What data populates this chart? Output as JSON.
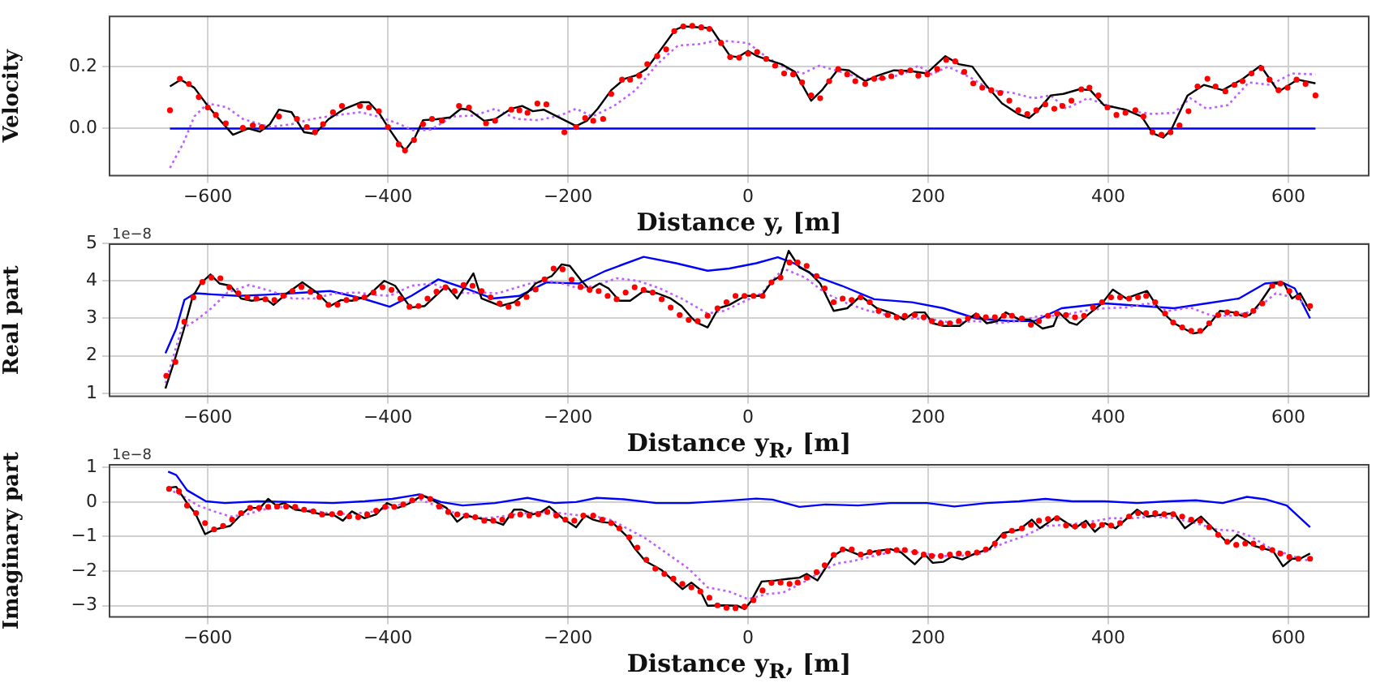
{
  "chart_data": [
    {
      "type": "line",
      "ylabel": "Velocity",
      "xlabel": "Distance y, [m]",
      "grid": true,
      "xlim": [
        -710,
        690
      ],
      "xticks": [
        {
          "value": -600,
          "label": "−600"
        },
        {
          "value": -400,
          "label": "−400"
        },
        {
          "value": -200,
          "label": "−200"
        },
        {
          "value": 0,
          "label": "0"
        },
        {
          "value": 200,
          "label": "200"
        },
        {
          "value": 400,
          "label": "400"
        },
        {
          "value": 600,
          "label": "600"
        }
      ],
      "ylim": [
        -0.155,
        0.365
      ],
      "yticks": [
        {
          "value": 0,
          "label": "0.0"
        },
        {
          "value": 0.2,
          "label": "0.2"
        }
      ],
      "series": [
        {
          "type": "scatter",
          "marker": "circle",
          "color": "#ff0000",
          "x": [
            -642,
            -631,
            -621,
            -610,
            -600,
            -591,
            -580,
            -561,
            -550,
            -540,
            -521,
            -501,
            -490,
            -481,
            -472,
            -461,
            -451,
            -431,
            -421,
            -410,
            -400,
            -388,
            -381,
            -371,
            -361,
            -351,
            -340,
            -321,
            -310,
            -291,
            -281,
            -263,
            -254,
            -245,
            -234,
            -224,
            -204,
            -191,
            -181,
            -172,
            -161,
            -152,
            -140,
            -131,
            -121,
            -112,
            -101,
            -91,
            -82,
            -72,
            -62,
            -52,
            -43,
            -30,
            -20,
            -10,
            0,
            10,
            20,
            30,
            40,
            50,
            60,
            70,
            80,
            90,
            100,
            110,
            119,
            130,
            140,
            149,
            159,
            170,
            180,
            189,
            199,
            210,
            220,
            230,
            240,
            250,
            260,
            270,
            280,
            290,
            300,
            310,
            320,
            330,
            340,
            349,
            359,
            370,
            379,
            389,
            399,
            409,
            419,
            430,
            439,
            449,
            459,
            469,
            479,
            489,
            499,
            510,
            519,
            530,
            540,
            549,
            559,
            570,
            579,
            589,
            599,
            609,
            619,
            630
          ],
          "values": [
            0.059,
            0.161,
            0.144,
            0.102,
            0.068,
            0.044,
            0.017,
            0.002,
            0.01,
            0.005,
            0.039,
            0.031,
            0.005,
            -0.012,
            0.014,
            0.053,
            0.073,
            0.073,
            0.068,
            0.056,
            0.005,
            -0.051,
            -0.071,
            -0.037,
            0.014,
            0.031,
            0.025,
            0.073,
            0.068,
            0.017,
            0.025,
            0.061,
            0.059,
            0.051,
            0.081,
            0.078,
            -0.012,
            0.005,
            0.034,
            0.025,
            0.031,
            0.112,
            0.158,
            0.158,
            0.171,
            0.208,
            0.234,
            0.256,
            0.315,
            0.33,
            0.332,
            0.327,
            0.322,
            0.276,
            0.231,
            0.229,
            0.242,
            0.247,
            0.225,
            0.203,
            0.178,
            0.175,
            0.149,
            0.107,
            0.098,
            0.153,
            0.192,
            0.175,
            0.153,
            0.144,
            0.161,
            0.163,
            0.169,
            0.183,
            0.188,
            0.171,
            0.175,
            0.192,
            0.222,
            0.217,
            0.183,
            0.146,
            0.132,
            0.124,
            0.115,
            0.09,
            0.059,
            0.047,
            0.059,
            0.078,
            0.064,
            0.073,
            0.09,
            0.127,
            0.132,
            0.107,
            0.068,
            0.044,
            0.051,
            0.059,
            0.039,
            -0.012,
            -0.02,
            -0.012,
            0.01,
            0.056,
            0.136,
            0.161,
            0.136,
            0.12,
            0.141,
            0.153,
            0.178,
            0.195,
            0.158,
            0.124,
            0.132,
            0.158,
            0.144,
            0.107
          ]
        },
        {
          "color": "#000000",
          "x": [
            -642,
            -630,
            -615,
            -600,
            -585,
            -572,
            -555,
            -542,
            -531,
            -521,
            -507,
            -493,
            -481,
            -466,
            -448,
            -430,
            -421,
            -409,
            -400,
            -388,
            -381,
            -370,
            -361,
            -346,
            -331,
            -319,
            -310,
            -293,
            -281,
            -263,
            -251,
            -239,
            -227,
            -212,
            -191,
            -179,
            -167,
            -152,
            -137,
            -125,
            -113,
            -96,
            -81,
            -72,
            -54,
            -41,
            -32,
            -20,
            -11,
            0,
            10,
            22,
            37,
            52,
            70,
            82,
            100,
            112,
            130,
            144,
            162,
            180,
            198,
            219,
            234,
            249,
            264,
            282,
            300,
            312,
            321,
            336,
            350,
            368,
            380,
            395,
            419,
            437,
            449,
            461,
            470,
            488,
            506,
            527,
            548,
            569,
            589,
            610,
            630
          ],
          "values": [
            0.136,
            0.158,
            0.132,
            0.073,
            0.022,
            -0.02,
            0,
            -0.01,
            0.014,
            0.061,
            0.053,
            -0.012,
            -0.017,
            0.03,
            0.064,
            0.085,
            0.085,
            0.047,
            0.005,
            -0.046,
            -0.071,
            -0.029,
            0.027,
            0.03,
            0.036,
            0.064,
            0.061,
            0.025,
            0.03,
            0.064,
            0.073,
            0.056,
            0.061,
            0.039,
            0.008,
            0.025,
            0.064,
            0.124,
            0.161,
            0.171,
            0.192,
            0.259,
            0.319,
            0.33,
            0.327,
            0.324,
            0.285,
            0.234,
            0.231,
            0.251,
            0.234,
            0.222,
            0.208,
            0.183,
            0.09,
            0.124,
            0.192,
            0.188,
            0.153,
            0.171,
            0.188,
            0.186,
            0.178,
            0.234,
            0.208,
            0.2,
            0.141,
            0.081,
            0.047,
            0.034,
            0.056,
            0.107,
            0.112,
            0.127,
            0.124,
            0.076,
            0.061,
            0.039,
            -0.015,
            -0.029,
            -0.003,
            0.107,
            0.141,
            0.124,
            0.158,
            0.203,
            0.119,
            0.158,
            0.146
          ]
        },
        {
          "line_style": "dotted",
          "color": "#bf5fff",
          "x": [
            -642,
            -627,
            -615,
            -600,
            -579,
            -561,
            -531,
            -507,
            -484,
            -460,
            -430,
            -412,
            -391,
            -370,
            -352,
            -328,
            -304,
            -281,
            -257,
            -233,
            -209,
            -191,
            -173,
            -149,
            -125,
            -101,
            -78,
            -53,
            -35,
            -17,
            0,
            19,
            43,
            61,
            79,
            103,
            127,
            151,
            174,
            189,
            204,
            222,
            246,
            270,
            294,
            317,
            336,
            353,
            377,
            401,
            425,
            449,
            473,
            491,
            509,
            533,
            556,
            580,
            604,
            630
          ],
          "values": [
            -0.127,
            -0.046,
            0.039,
            0.081,
            0.069,
            0.031,
            0.005,
            0.014,
            0.031,
            0.042,
            0.053,
            0.039,
            0.019,
            -0.008,
            -0.003,
            0.039,
            0.042,
            0.064,
            0.031,
            0.027,
            0.042,
            0.064,
            0.039,
            0.073,
            0.124,
            0.208,
            0.268,
            0.273,
            0.285,
            0.281,
            0.276,
            0.234,
            0.192,
            0.178,
            0.203,
            0.183,
            0.161,
            0.161,
            0.178,
            0.203,
            0.175,
            0.2,
            0.166,
            0.124,
            0.115,
            0.098,
            0.107,
            0.064,
            0.098,
            0.073,
            0.056,
            0.047,
            0.051,
            0.098,
            0.064,
            0.076,
            0.149,
            0.141,
            0.178,
            0.175
          ]
        },
        {
          "color": "#0000ff",
          "x": [
            -642,
            630
          ],
          "values": [
            0,
            0
          ]
        }
      ]
    },
    {
      "type": "line",
      "ylabel": "Real part",
      "xlabel": "Distance y$_{R}$, [m]",
      "grid": true,
      "annotations": [
        "1e−8"
      ],
      "xlim": [
        -710,
        690
      ],
      "xticks": [
        {
          "value": -600,
          "label": "−600"
        },
        {
          "value": -400,
          "label": "−400"
        },
        {
          "value": -200,
          "label": "−200"
        },
        {
          "value": 0,
          "label": "0"
        },
        {
          "value": 200,
          "label": "200"
        },
        {
          "value": 400,
          "label": "400"
        },
        {
          "value": 600,
          "label": "600"
        }
      ],
      "ylim": [
        0.9,
        5.0
      ],
      "yticks": [
        1,
        2,
        3,
        4,
        5
      ],
      "series": [
        {
          "type": "scatter",
          "marker": "circle",
          "color": "#ff0000",
          "x": [
            -646,
            -636,
            -626,
            -616,
            -606,
            -596,
            -586,
            -576,
            -566,
            -556,
            -546,
            -536,
            -526,
            -516,
            -506,
            -496,
            -486,
            -476,
            -466,
            -456,
            -446,
            -436,
            -426,
            -416,
            -406,
            -396,
            -386,
            -376,
            -366,
            -356,
            -346,
            -336,
            -326,
            -316,
            -306,
            -296,
            -286,
            -276,
            -266,
            -256,
            -246,
            -236,
            -226,
            -216,
            -206,
            -196,
            -186,
            -176,
            -166,
            -156,
            -146,
            -136,
            -126,
            -116,
            -106,
            -96,
            -86,
            -76,
            -66,
            -56,
            -45,
            -34,
            -24,
            -14,
            -4,
            6,
            16,
            26,
            36,
            46,
            55,
            65,
            76,
            85,
            95,
            105,
            115,
            125,
            135,
            145,
            155,
            165,
            174,
            185,
            195,
            204,
            214,
            224,
            234,
            244,
            254,
            264,
            274,
            284,
            293,
            304,
            314,
            323,
            333,
            343,
            353,
            363,
            373,
            383,
            393,
            403,
            413,
            423,
            433,
            442,
            452,
            463,
            472,
            482,
            492,
            502,
            512,
            522,
            532,
            542,
            552,
            561,
            571,
            582,
            591,
            601,
            611,
            624
          ],
          "values": [
            1.47,
            1.84,
            2.91,
            3.56,
            3.97,
            4.09,
            4.07,
            3.83,
            3.67,
            3.56,
            3.53,
            3.51,
            3.49,
            3.6,
            3.73,
            3.84,
            3.71,
            3.57,
            3.36,
            3.37,
            3.49,
            3.53,
            3.56,
            3.69,
            3.83,
            3.76,
            3.53,
            3.31,
            3.33,
            3.53,
            3.71,
            3.83,
            3.73,
            3.89,
            3.87,
            3.73,
            3.56,
            3.4,
            3.31,
            3.4,
            3.57,
            3.77,
            4.04,
            4.33,
            4.31,
            4.03,
            3.84,
            3.76,
            3.73,
            3.6,
            3.51,
            3.69,
            3.83,
            3.76,
            3.69,
            3.51,
            3.29,
            3.09,
            2.96,
            2.93,
            3.07,
            3.27,
            3.43,
            3.6,
            3.6,
            3.6,
            3.6,
            3.96,
            4.09,
            4.49,
            4.49,
            4.4,
            4.13,
            3.8,
            3.43,
            3.53,
            3.49,
            3.56,
            3.43,
            3.2,
            3.09,
            3.03,
            3.07,
            3.09,
            3.03,
            2.93,
            2.87,
            2.87,
            2.93,
            3.0,
            3.07,
            3.03,
            3.03,
            3.07,
            3.07,
            3.0,
            2.83,
            2.93,
            3.07,
            3.13,
            3.09,
            3.03,
            3.07,
            3.29,
            3.43,
            3.56,
            3.56,
            3.53,
            3.56,
            3.6,
            3.43,
            3.13,
            2.89,
            2.76,
            2.67,
            2.67,
            2.87,
            3.09,
            3.16,
            3.13,
            3.09,
            3.2,
            3.4,
            3.87,
            3.93,
            3.73,
            3.56,
            3.33
          ]
        },
        {
          "color": "#000000",
          "x": [
            -647,
            -637,
            -627,
            -617,
            -608,
            -597,
            -587,
            -575,
            -563,
            -551,
            -536,
            -527,
            -512,
            -495,
            -479,
            -464,
            -452,
            -440,
            -422,
            -404,
            -392,
            -375,
            -359,
            -347,
            -335,
            -323,
            -305,
            -296,
            -275,
            -260,
            -245,
            -236,
            -218,
            -207,
            -198,
            -185,
            -176,
            -165,
            -155,
            -143,
            -131,
            -116,
            -101,
            -86,
            -74,
            -62,
            -57,
            -45,
            -33,
            -21,
            -3,
            15,
            27,
            36,
            45,
            57,
            68,
            80,
            95,
            110,
            125,
            143,
            161,
            173,
            185,
            196,
            205,
            217,
            235,
            253,
            265,
            277,
            286,
            301,
            313,
            327,
            339,
            345,
            357,
            365,
            378,
            393,
            405,
            420,
            432,
            443,
            455,
            473,
            494,
            503,
            515,
            524,
            539,
            548,
            557,
            568,
            583,
            595,
            604,
            613,
            624
          ],
          "values": [
            1.13,
            1.87,
            2.67,
            3.56,
            3.93,
            4.17,
            3.93,
            3.87,
            3.53,
            3.47,
            3.53,
            3.36,
            3.67,
            3.96,
            3.69,
            3.33,
            3.49,
            3.47,
            3.6,
            4.0,
            3.87,
            3.29,
            3.33,
            3.6,
            3.87,
            3.53,
            4.2,
            3.53,
            3.33,
            3.43,
            3.69,
            3.93,
            4.13,
            4.44,
            4.4,
            4.0,
            3.77,
            3.93,
            3.8,
            3.47,
            3.47,
            3.73,
            3.67,
            3.53,
            3.33,
            3.0,
            2.89,
            2.76,
            3.27,
            3.36,
            3.6,
            3.6,
            4.0,
            4.13,
            4.8,
            4.36,
            4.23,
            3.93,
            3.2,
            3.27,
            3.6,
            3.27,
            3.13,
            2.97,
            3.16,
            3.16,
            2.87,
            2.8,
            2.8,
            3.13,
            2.87,
            2.93,
            3.16,
            2.97,
            2.97,
            2.73,
            2.8,
            3.16,
            2.89,
            2.83,
            3.11,
            3.4,
            3.77,
            3.53,
            3.64,
            3.73,
            3.29,
            2.87,
            2.6,
            2.63,
            2.93,
            3.2,
            3.16,
            3.07,
            3.09,
            3.4,
            3.93,
            3.93,
            3.53,
            3.67,
            3.2
          ]
        },
        {
          "line_style": "dotted",
          "color": "#bf5fff",
          "x": [
            -647,
            -629,
            -614,
            -596,
            -578,
            -554,
            -530,
            -506,
            -482,
            -458,
            -434,
            -416,
            -398,
            -374,
            -350,
            -332,
            -314,
            -296,
            -278,
            -260,
            -242,
            -224,
            -206,
            -188,
            -170,
            -146,
            -122,
            -98,
            -74,
            -45,
            -27,
            -9,
            15,
            39,
            63,
            86,
            110,
            134,
            158,
            182,
            205,
            229,
            253,
            277,
            301,
            324,
            348,
            372,
            396,
            420,
            443,
            467,
            491,
            515,
            539,
            562,
            586,
            610,
            624
          ],
          "values": [
            1.27,
            2.73,
            2.93,
            3.27,
            3.69,
            3.89,
            3.73,
            3.53,
            3.53,
            3.67,
            3.69,
            3.63,
            3.6,
            3.87,
            3.93,
            3.73,
            3.67,
            3.69,
            3.67,
            3.8,
            3.93,
            4.0,
            3.93,
            3.8,
            3.87,
            4.07,
            4.0,
            3.8,
            3.53,
            3.13,
            3.2,
            3.4,
            3.67,
            4.33,
            4.09,
            3.67,
            3.4,
            3.2,
            3.07,
            3.0,
            2.97,
            2.87,
            2.93,
            2.87,
            2.93,
            3.07,
            3.07,
            3.2,
            3.27,
            3.29,
            3.4,
            3.2,
            3.29,
            3.07,
            3.07,
            3.2,
            3.67,
            3.53,
            3.27
          ]
        },
        {
          "color": "#0000ff",
          "x": [
            -647,
            -635,
            -626,
            -614,
            -596,
            -566,
            -536,
            -506,
            -464,
            -428,
            -398,
            -374,
            -344,
            -314,
            -284,
            -254,
            -224,
            -188,
            -158,
            -116,
            -80,
            -45,
            -21,
            9,
            33,
            51,
            74,
            104,
            140,
            182,
            217,
            253,
            289,
            318,
            348,
            396,
            438,
            473,
            509,
            545,
            574,
            592,
            607,
            624
          ],
          "values": [
            2.07,
            2.73,
            3.49,
            3.67,
            3.64,
            3.6,
            3.63,
            3.67,
            3.73,
            3.53,
            3.31,
            3.6,
            4.04,
            3.8,
            3.53,
            3.6,
            3.96,
            3.93,
            4.27,
            4.64,
            4.47,
            4.27,
            4.33,
            4.47,
            4.63,
            4.47,
            4.13,
            3.87,
            3.51,
            3.43,
            3.27,
            3.0,
            2.93,
            2.93,
            3.27,
            3.4,
            3.33,
            3.27,
            3.4,
            3.53,
            3.93,
            3.97,
            3.8,
            3.0
          ]
        }
      ]
    },
    {
      "type": "line",
      "ylabel": "Imaginary part",
      "xlabel": "Distance y$_{R}$, [m]",
      "grid": true,
      "annotations": [
        "1e−8"
      ],
      "xlim": [
        -710,
        690
      ],
      "xticks": [
        {
          "value": -600,
          "label": "−600"
        },
        {
          "value": -400,
          "label": "−400"
        },
        {
          "value": -200,
          "label": "−200"
        },
        {
          "value": 0,
          "label": "0"
        },
        {
          "value": 200,
          "label": "200"
        },
        {
          "value": 400,
          "label": "400"
        },
        {
          "value": 600,
          "label": "600"
        }
      ],
      "ylim": [
        -3.35,
        1.1
      ],
      "yticks": [
        {
          "value": -3,
          "label": "−3"
        },
        {
          "value": -2,
          "label": "−2"
        },
        {
          "value": -1,
          "label": "−1"
        },
        0,
        1
      ],
      "series": [
        {
          "type": "scatter",
          "marker": "circle",
          "color": "#ff0000",
          "x": [
            -643,
            -632,
            -623,
            -613,
            -603,
            -593,
            -583,
            -573,
            -563,
            -553,
            -543,
            -533,
            -523,
            -513,
            -503,
            -493,
            -483,
            -473,
            -462,
            -453,
            -443,
            -433,
            -423,
            -413,
            -403,
            -393,
            -383,
            -373,
            -363,
            -353,
            -343,
            -333,
            -323,
            -313,
            -303,
            -293,
            -283,
            -273,
            -263,
            -253,
            -243,
            -233,
            -223,
            -213,
            -203,
            -193,
            -183,
            -172,
            -162,
            -152,
            -143,
            -132,
            -123,
            -113,
            -103,
            -93,
            -83,
            -73,
            -63,
            -53,
            -43,
            -34,
            -24,
            -14,
            -4,
            6,
            16,
            26,
            36,
            46,
            55,
            65,
            76,
            85,
            95,
            105,
            115,
            125,
            135,
            145,
            155,
            165,
            174,
            185,
            195,
            204,
            214,
            224,
            234,
            244,
            254,
            264,
            274,
            284,
            293,
            304,
            314,
            323,
            333,
            343,
            353,
            363,
            373,
            383,
            393,
            403,
            413,
            423,
            433,
            442,
            452,
            462,
            472,
            482,
            492,
            502,
            512,
            522,
            532,
            542,
            552,
            561,
            571,
            582,
            591,
            601,
            611,
            624
          ],
          "values": [
            0.38,
            0.31,
            -0.1,
            -0.32,
            -0.61,
            -0.79,
            -0.69,
            -0.51,
            -0.32,
            -0.17,
            -0.17,
            -0.14,
            -0.13,
            -0.13,
            -0.14,
            -0.22,
            -0.27,
            -0.36,
            -0.35,
            -0.32,
            -0.42,
            -0.44,
            -0.36,
            -0.25,
            -0.14,
            -0.14,
            -0.07,
            0.05,
            0.16,
            0.09,
            -0.13,
            -0.29,
            -0.36,
            -0.39,
            -0.44,
            -0.54,
            -0.54,
            -0.51,
            -0.39,
            -0.36,
            -0.39,
            -0.35,
            -0.29,
            -0.39,
            -0.51,
            -0.54,
            -0.39,
            -0.39,
            -0.51,
            -0.61,
            -0.76,
            -1.02,
            -1.32,
            -1.67,
            -1.93,
            -2.08,
            -2.22,
            -2.37,
            -2.47,
            -2.59,
            -2.77,
            -2.99,
            -3.06,
            -3.07,
            -3.03,
            -2.84,
            -2.56,
            -2.34,
            -2.33,
            -2.37,
            -2.33,
            -2.19,
            -2.03,
            -1.83,
            -1.53,
            -1.37,
            -1.37,
            -1.52,
            -1.45,
            -1.46,
            -1.42,
            -1.39,
            -1.39,
            -1.45,
            -1.52,
            -1.56,
            -1.56,
            -1.52,
            -1.49,
            -1.49,
            -1.46,
            -1.37,
            -1.2,
            -0.98,
            -0.83,
            -0.76,
            -0.66,
            -0.54,
            -0.49,
            -0.47,
            -0.68,
            -0.71,
            -0.68,
            -0.68,
            -0.66,
            -0.68,
            -0.61,
            -0.42,
            -0.32,
            -0.32,
            -0.32,
            -0.35,
            -0.35,
            -0.42,
            -0.51,
            -0.54,
            -0.73,
            -0.95,
            -1.15,
            -1.24,
            -1.2,
            -1.2,
            -1.32,
            -1.39,
            -1.49,
            -1.59,
            -1.64,
            -1.64
          ]
        },
        {
          "color": "#000000",
          "x": [
            -644,
            -635,
            -623,
            -614,
            -603,
            -593,
            -575,
            -564,
            -554,
            -542,
            -533,
            -524,
            -515,
            -503,
            -488,
            -473,
            -461,
            -450,
            -440,
            -426,
            -413,
            -401,
            -389,
            -377,
            -362,
            -350,
            -335,
            -323,
            -314,
            -299,
            -284,
            -272,
            -260,
            -251,
            -239,
            -230,
            -221,
            -206,
            -191,
            -181,
            -172,
            -162,
            -150,
            -135,
            -126,
            -114,
            -96,
            -73,
            -63,
            -54,
            -45,
            -27,
            -12,
            -4,
            3,
            15,
            30,
            45,
            57,
            65,
            77,
            95,
            107,
            125,
            140,
            158,
            170,
            185,
            196,
            205,
            217,
            226,
            238,
            253,
            268,
            283,
            301,
            315,
            324,
            343,
            363,
            375,
            385,
            396,
            408,
            432,
            443,
            473,
            485,
            503,
            533,
            543,
            562,
            583,
            594,
            604,
            613,
            624
          ],
          "values": [
            0.41,
            0.44,
            -0.03,
            -0.32,
            -0.93,
            -0.8,
            -0.69,
            -0.39,
            -0.17,
            -0.17,
            0.09,
            -0.1,
            -0.03,
            -0.22,
            -0.27,
            -0.36,
            -0.36,
            -0.54,
            -0.27,
            -0.47,
            -0.36,
            -0.03,
            -0.17,
            -0.05,
            0.19,
            0.05,
            -0.17,
            -0.57,
            -0.39,
            -0.47,
            -0.54,
            -0.66,
            -0.22,
            -0.22,
            -0.36,
            -0.29,
            -0.13,
            -0.47,
            -0.73,
            -0.39,
            -0.51,
            -0.58,
            -0.61,
            -0.98,
            -1.34,
            -1.71,
            -1.97,
            -2.52,
            -2.33,
            -2.52,
            -3.0,
            -2.99,
            -3.0,
            -3.1,
            -2.88,
            -2.3,
            -2.27,
            -2.22,
            -2.19,
            -2.08,
            -2.27,
            -1.55,
            -1.36,
            -1.55,
            -1.43,
            -1.36,
            -1.46,
            -1.8,
            -1.51,
            -1.76,
            -1.73,
            -1.58,
            -1.66,
            -1.48,
            -1.36,
            -0.9,
            -0.8,
            -0.51,
            -0.76,
            -0.42,
            -0.76,
            -0.54,
            -0.86,
            -0.61,
            -0.76,
            -0.22,
            -0.42,
            -0.32,
            -0.76,
            -0.42,
            -1.2,
            -0.95,
            -1.27,
            -1.42,
            -1.86,
            -1.64,
            -1.64,
            -1.49
          ]
        },
        {
          "line_style": "dotted",
          "color": "#bf5fff",
          "x": [
            -644,
            -629,
            -611,
            -593,
            -575,
            -557,
            -539,
            -515,
            -491,
            -467,
            -443,
            -419,
            -401,
            -383,
            -365,
            -347,
            -329,
            -311,
            -293,
            -275,
            -257,
            -233,
            -209,
            -186,
            -168,
            -150,
            -132,
            -114,
            -90,
            -66,
            -45,
            -21,
            0,
            21,
            39,
            63,
            80,
            98,
            116,
            140,
            164,
            187,
            211,
            235,
            259,
            283,
            307,
            330,
            354,
            378,
            402,
            426,
            449,
            473,
            497,
            521,
            539,
            557,
            580,
            604,
            624
          ],
          "values": [
            0.38,
            0.19,
            -0.1,
            -0.27,
            -0.42,
            -0.36,
            -0.22,
            -0.14,
            -0.22,
            -0.32,
            -0.35,
            -0.29,
            -0.17,
            -0.05,
            0.08,
            -0.1,
            -0.29,
            -0.39,
            -0.47,
            -0.42,
            -0.35,
            -0.29,
            -0.32,
            -0.39,
            -0.42,
            -0.54,
            -0.8,
            -1.05,
            -1.49,
            -1.93,
            -2.47,
            -2.59,
            -2.81,
            -2.66,
            -2.62,
            -2.3,
            -2.03,
            -1.78,
            -1.71,
            -1.56,
            -1.42,
            -1.45,
            -1.56,
            -1.56,
            -1.49,
            -1.2,
            -0.98,
            -0.69,
            -0.66,
            -0.58,
            -0.47,
            -0.47,
            -0.42,
            -0.47,
            -0.61,
            -0.8,
            -0.83,
            -0.98,
            -1.34,
            -1.56,
            -1.71
          ]
        },
        {
          "color": "#0000ff",
          "x": [
            -644,
            -635,
            -623,
            -602,
            -581,
            -545,
            -503,
            -461,
            -426,
            -395,
            -365,
            -341,
            -317,
            -281,
            -245,
            -215,
            -191,
            -168,
            -138,
            -102,
            -66,
            -21,
            9,
            27,
            57,
            86,
            122,
            158,
            199,
            229,
            265,
            301,
            330,
            360,
            396,
            432,
            467,
            497,
            527,
            554,
            574,
            598,
            624
          ],
          "values": [
            0.88,
            0.78,
            0.34,
            0.02,
            -0.03,
            0.02,
            0.0,
            -0.03,
            0.02,
            0.09,
            0.22,
            0.0,
            -0.1,
            -0.03,
            0.12,
            -0.03,
            0.0,
            0.12,
            0.08,
            -0.03,
            -0.03,
            0.04,
            0.1,
            0.07,
            -0.14,
            -0.07,
            -0.1,
            -0.03,
            -0.03,
            -0.13,
            -0.03,
            0.02,
            0.09,
            0.02,
            0.02,
            -0.03,
            0.02,
            0.05,
            -0.03,
            0.15,
            0.08,
            -0.1,
            -0.73
          ]
        }
      ]
    }
  ]
}
